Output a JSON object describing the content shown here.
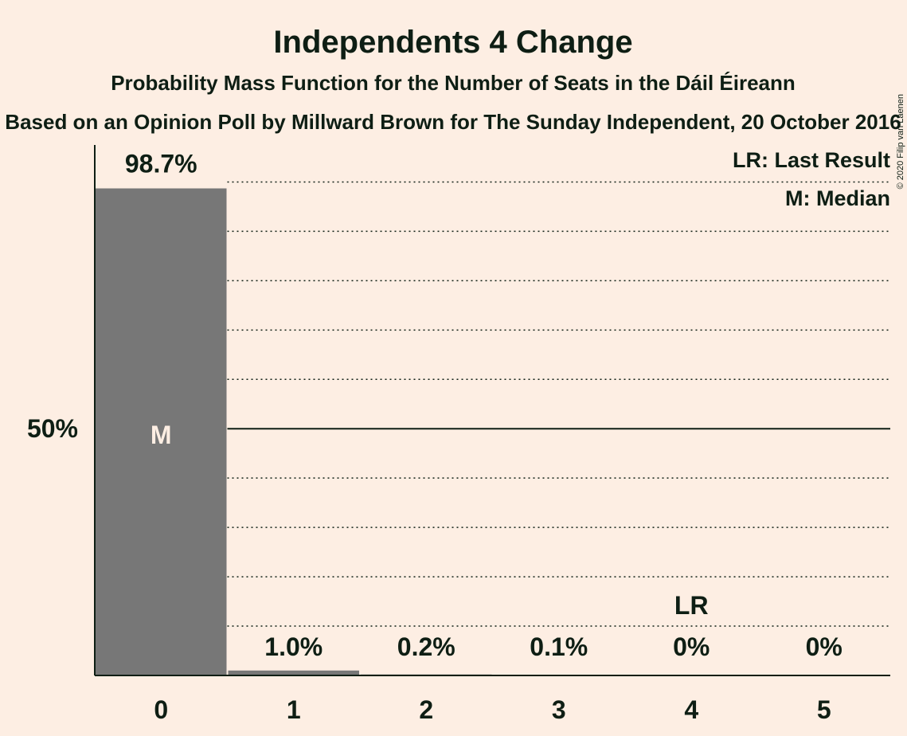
{
  "chart_data": {
    "type": "bar",
    "title": "Independents 4 Change",
    "subtitle": "Probability Mass Function for the Number of Seats in the Dáil Éireann",
    "subtitle2": "Based on an Opinion Poll by Millward Brown for The Sunday Independent, 20 October 2016",
    "copyright": "© 2020 Filip van Laenen",
    "categories": [
      "0",
      "1",
      "2",
      "3",
      "4",
      "5"
    ],
    "values": [
      98.7,
      1.0,
      0.2,
      0.1,
      0,
      0
    ],
    "value_labels": [
      "98.7%",
      "1.0%",
      "0.2%",
      "0.1%",
      "0%",
      "0%"
    ],
    "ylim": [
      0,
      107.5
    ],
    "y_tick_label": "50%",
    "y_tick_value": 50,
    "grid_step": 10,
    "bar_color": "#777777",
    "median_index": 0,
    "median_marker": "M",
    "last_result_index": 4,
    "last_result_marker": "LR",
    "legend": [
      "LR: Last Result",
      "M: Median"
    ]
  }
}
